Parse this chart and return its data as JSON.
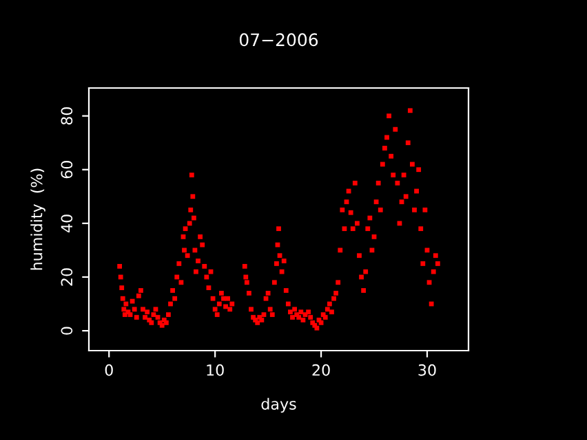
{
  "chart_data": {
    "type": "scatter",
    "title": "07−2006",
    "xlabel": "days",
    "ylabel": "humidity  (%)",
    "xlim": [
      -1.9,
      33.9
    ],
    "ylim": [
      -7.4,
      90.4
    ],
    "xticks": [
      0,
      10,
      20,
      30
    ],
    "yticks": [
      0,
      20,
      40,
      60,
      80
    ],
    "grid": false,
    "marker": "square",
    "series": [
      {
        "color": "#ff0000",
        "x": [
          1.0,
          1.1,
          1.2,
          1.3,
          1.4,
          1.5,
          1.6,
          1.8,
          2.0,
          2.2,
          2.4,
          2.6,
          2.8,
          3.0,
          3.2,
          3.4,
          3.6,
          3.8,
          4.0,
          4.2,
          4.4,
          4.6,
          4.8,
          5.0,
          5.2,
          5.4,
          5.6,
          5.8,
          6.0,
          6.2,
          6.4,
          6.6,
          6.8,
          7.0,
          7.1,
          7.2,
          7.4,
          7.6,
          7.7,
          7.8,
          7.9,
          8.0,
          8.1,
          8.2,
          8.4,
          8.6,
          8.8,
          9.0,
          9.2,
          9.4,
          9.6,
          9.8,
          10.0,
          10.2,
          10.4,
          10.6,
          10.8,
          11.0,
          11.2,
          11.4,
          11.6,
          12.8,
          12.9,
          13.0,
          13.2,
          13.4,
          13.6,
          13.8,
          14.0,
          14.2,
          14.4,
          14.6,
          14.8,
          15.0,
          15.2,
          15.4,
          15.6,
          15.8,
          15.9,
          16.0,
          16.1,
          16.3,
          16.5,
          16.7,
          16.9,
          17.1,
          17.3,
          17.5,
          17.7,
          17.9,
          18.1,
          18.3,
          18.5,
          18.8,
          19.0,
          19.2,
          19.4,
          19.6,
          19.8,
          20.0,
          20.2,
          20.4,
          20.6,
          20.8,
          21.0,
          21.2,
          21.4,
          21.6,
          21.8,
          22.0,
          22.2,
          22.4,
          22.6,
          22.8,
          23.0,
          23.2,
          23.4,
          23.6,
          23.8,
          24.0,
          24.2,
          24.4,
          24.6,
          24.8,
          25.0,
          25.2,
          25.4,
          25.6,
          25.8,
          26.0,
          26.2,
          26.4,
          26.6,
          26.8,
          27.0,
          27.2,
          27.4,
          27.6,
          27.8,
          28.0,
          28.2,
          28.4,
          28.6,
          28.8,
          29.0,
          29.2,
          29.4,
          29.6,
          29.8,
          30.0,
          30.2,
          30.4,
          30.6,
          30.8,
          31.0
        ],
        "values": [
          24,
          20,
          16,
          12,
          8,
          6,
          10,
          7,
          6,
          11,
          8,
          5,
          13,
          15,
          8,
          5,
          7,
          4,
          3,
          6,
          8,
          5,
          3,
          2,
          4,
          3,
          6,
          10,
          15,
          12,
          20,
          25,
          18,
          35,
          30,
          38,
          28,
          40,
          45,
          58,
          50,
          42,
          30,
          22,
          26,
          35,
          32,
          24,
          20,
          16,
          22,
          12,
          8,
          6,
          10,
          14,
          12,
          9,
          12,
          8,
          10,
          24,
          20,
          18,
          14,
          8,
          5,
          4,
          3,
          5,
          4,
          6,
          12,
          14,
          8,
          6,
          18,
          25,
          32,
          38,
          28,
          22,
          26,
          15,
          10,
          7,
          5,
          8,
          6,
          5,
          7,
          4,
          6,
          7,
          5,
          3,
          2,
          1,
          4,
          3,
          6,
          5,
          8,
          10,
          7,
          12,
          14,
          18,
          30,
          45,
          38,
          48,
          52,
          44,
          38,
          55,
          40,
          28,
          20,
          15,
          22,
          38,
          42,
          30,
          35,
          48,
          55,
          45,
          62,
          68,
          72,
          80,
          65,
          58,
          75,
          55,
          40,
          48,
          58,
          50,
          70,
          82,
          62,
          45,
          52,
          60,
          38,
          25,
          45,
          30,
          18,
          10,
          22,
          28,
          25
        ]
      }
    ]
  }
}
